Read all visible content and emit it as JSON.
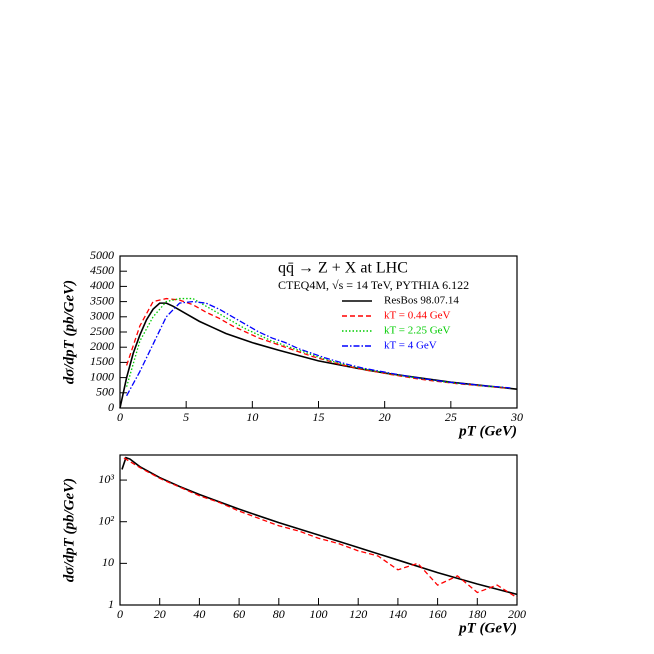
{
  "chart_data": [
    {
      "type": "line",
      "title": "qq̄ → Z + X at LHC",
      "subtitle": "CTEQ4M, √s = 14 TeV, PYTHIA 6.122",
      "x_label": "pT (GeV)",
      "y_label": "dσ/dpT (pb/GeV)",
      "xlim": [
        0,
        30
      ],
      "ylim": [
        0,
        5000
      ],
      "xticks": [
        0,
        5,
        10,
        15,
        20,
        25,
        30
      ],
      "yticks": [
        0,
        500,
        1000,
        1500,
        2000,
        2500,
        3000,
        3500,
        4000,
        4500,
        5000
      ],
      "legend": "top-right",
      "series": [
        {
          "name": "ResBos 98.07.14",
          "color": "#000000",
          "style": "solid",
          "x": [
            0,
            0.5,
            1,
            1.5,
            2,
            2.5,
            3,
            3.5,
            4,
            5,
            6,
            7,
            8,
            10,
            12,
            15,
            18,
            20,
            25,
            30
          ],
          "values": [
            0,
            1000,
            1800,
            2400,
            2900,
            3250,
            3450,
            3450,
            3350,
            3100,
            2850,
            2650,
            2450,
            2150,
            1900,
            1550,
            1300,
            1150,
            850,
            620
          ]
        },
        {
          "name": "kT = 0.44 GeV",
          "color": "#ff0000",
          "style": "dashed",
          "x": [
            0.5,
            1.5,
            2.5,
            3.5,
            4.5,
            5.5,
            6.5,
            7.5,
            8.5,
            9.5,
            10.5,
            11.5,
            12.5,
            13.5,
            14.5,
            15.5,
            16.5,
            17.5,
            18.5,
            19.5,
            20.5,
            21.5,
            22.5,
            23.5,
            24.5,
            25.5,
            26.5,
            27.5,
            28.5,
            29.5
          ],
          "values": [
            1400,
            2700,
            3500,
            3600,
            3550,
            3400,
            3150,
            2950,
            2700,
            2500,
            2300,
            2150,
            2000,
            1850,
            1700,
            1580,
            1450,
            1350,
            1250,
            1180,
            1100,
            1030,
            960,
            900,
            850,
            800,
            760,
            720,
            680,
            650
          ]
        },
        {
          "name": "kT = 2.25 GeV",
          "color": "#00cc00",
          "style": "dotted",
          "x": [
            0.5,
            1.5,
            2.5,
            3.5,
            4.5,
            5.5,
            6.5,
            7.5,
            8.5,
            9.5,
            10.5,
            11.5,
            12.5,
            13.5,
            14.5,
            15.5,
            16.5,
            17.5,
            18.5,
            19.5,
            20.5,
            21.5,
            22.5,
            23.5,
            24.5,
            25.5,
            26.5,
            27.5,
            28.5,
            29.5
          ],
          "values": [
            700,
            2200,
            3000,
            3500,
            3600,
            3600,
            3350,
            3100,
            2850,
            2600,
            2400,
            2200,
            2050,
            1900,
            1750,
            1600,
            1480,
            1380,
            1270,
            1200,
            1120,
            1050,
            980,
            920,
            860,
            810,
            770,
            720,
            690,
            650
          ]
        },
        {
          "name": "kT = 4 GeV",
          "color": "#0000ff",
          "style": "dashdot",
          "x": [
            0.5,
            1.5,
            2.5,
            3.5,
            4.5,
            5.5,
            6.5,
            7.5,
            8.5,
            9.5,
            10.5,
            11.5,
            12.5,
            13.5,
            14.5,
            15.5,
            16.5,
            17.5,
            18.5,
            19.5,
            20.5,
            21.5,
            22.5,
            23.5,
            24.5,
            25.5,
            26.5,
            27.5,
            28.5,
            29.5
          ],
          "values": [
            400,
            1200,
            2100,
            3000,
            3450,
            3500,
            3450,
            3250,
            3000,
            2750,
            2500,
            2300,
            2150,
            1950,
            1800,
            1650,
            1520,
            1400,
            1300,
            1220,
            1140,
            1060,
            990,
            930,
            870,
            820,
            780,
            730,
            700,
            660
          ]
        }
      ]
    },
    {
      "type": "line",
      "x_label": "pT (GeV)",
      "y_label": "dσ/dpT (pb/GeV)",
      "log_y": true,
      "xlim": [
        0,
        200
      ],
      "ylim": [
        1,
        4000
      ],
      "xticks": [
        0,
        20,
        40,
        60,
        80,
        100,
        120,
        140,
        160,
        180,
        200
      ],
      "yticks": [
        1,
        10,
        {
          "value": 100,
          "label": "10²"
        },
        {
          "value": 1000,
          "label": "10³"
        }
      ],
      "series": [
        {
          "name": "ResBos 98.07.14",
          "color": "#000000",
          "style": "solid",
          "x": [
            1,
            3,
            5,
            10,
            20,
            30,
            40,
            60,
            80,
            100,
            120,
            140,
            160,
            180,
            200
          ],
          "values": [
            1800,
            3450,
            3200,
            2100,
            1150,
            700,
            450,
            200,
            95,
            48,
            24,
            12,
            6,
            3.2,
            1.8
          ]
        },
        {
          "name": "kT = 0.44 GeV",
          "color": "#ff0000",
          "style": "dashed",
          "x": [
            2,
            10,
            20,
            30,
            40,
            50,
            60,
            70,
            80,
            90,
            100,
            110,
            120,
            130,
            140,
            150,
            160,
            170,
            180,
            190,
            200
          ],
          "values": [
            3400,
            2000,
            1100,
            680,
            420,
            290,
            180,
            120,
            80,
            60,
            40,
            30,
            20,
            15,
            7,
            10,
            3,
            5,
            2,
            3,
            1.5
          ]
        }
      ]
    }
  ]
}
